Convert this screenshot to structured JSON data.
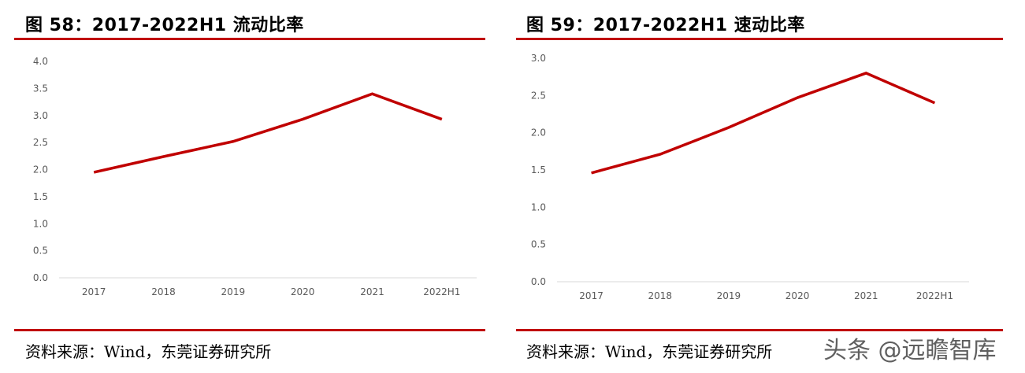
{
  "left": {
    "title": "图 58：2017-2022H1 流动比率",
    "source": "资料来源：Wind，东莞证券研究所"
  },
  "right": {
    "title": "图 59：2017-2022H1 速动比率",
    "source": "资料来源：Wind，东莞证券研究所"
  },
  "watermark": "头条 @远瞻智库",
  "colors": {
    "accent": "#c00000",
    "line": "#c00000",
    "axis": "#d9d9d9",
    "tick_text": "#595959"
  },
  "chart_data": [
    {
      "type": "line",
      "title": "图 58：2017-2022H1 流动比率",
      "categories": [
        "2017",
        "2018",
        "2019",
        "2020",
        "2021",
        "2022H1"
      ],
      "series": [
        {
          "values": [
            1.95,
            2.24,
            2.52,
            2.93,
            3.4,
            2.93
          ]
        }
      ],
      "yticks": [
        "0.0",
        "0.5",
        "1.0",
        "1.5",
        "2.0",
        "2.5",
        "3.0",
        "3.5",
        "4.0"
      ],
      "ylim": [
        0,
        4
      ],
      "xlabel": "",
      "ylabel": "",
      "grid": false,
      "legend": "none"
    },
    {
      "type": "line",
      "title": "图 59：2017-2022H1 速动比率",
      "categories": [
        "2017",
        "2018",
        "2019",
        "2020",
        "2021",
        "2022H1"
      ],
      "series": [
        {
          "values": [
            1.46,
            1.71,
            2.07,
            2.47,
            2.8,
            2.4
          ]
        }
      ],
      "yticks": [
        "0.0",
        "0.5",
        "1.0",
        "1.5",
        "2.0",
        "2.5",
        "3.0"
      ],
      "ylim": [
        0,
        3
      ],
      "xlabel": "",
      "ylabel": "",
      "grid": false,
      "legend": "none"
    }
  ]
}
